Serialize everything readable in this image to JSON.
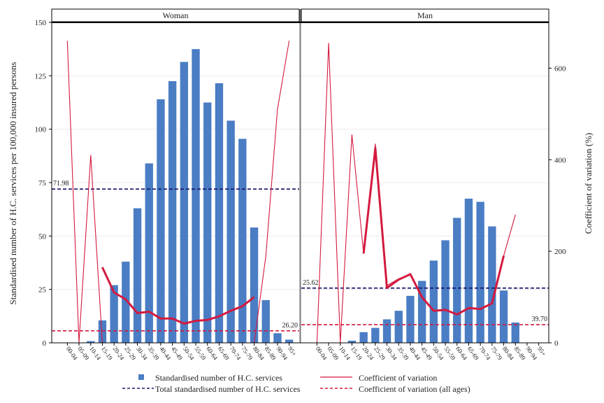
{
  "chart_data": {
    "type": "bar",
    "categories": [
      "00-04",
      "05-09",
      "10-14",
      "15-19",
      "20-24",
      "25-29",
      "30-34",
      "35-39",
      "40-44",
      "45-49",
      "50-54",
      "55-59",
      "60-64",
      "65-69",
      "70-74",
      "75-79",
      "80-84",
      "85-89",
      "90-94",
      "95+"
    ],
    "ylabel": "Standardised number of H.C. services per 100,000 insured persons",
    "y2label": "Coefficient of variation (%)",
    "ylim": [
      0,
      150
    ],
    "y2lim": [
      0,
      700
    ],
    "yticks": [
      0,
      25,
      50,
      75,
      100,
      125,
      150
    ],
    "y2ticks": [
      0,
      200,
      400,
      600
    ],
    "grid": true,
    "legend_position": "bottom",
    "panels": [
      {
        "title": "Woman",
        "values": [
          0,
          0,
          0.8,
          10.5,
          27,
          38,
          63,
          84,
          114,
          122.5,
          131.5,
          137.5,
          112.5,
          121.5,
          104,
          95.5,
          54,
          20,
          4.5,
          1.5
        ],
        "cv_all": [
          660,
          0,
          410,
          0,
          0,
          0,
          0,
          0,
          0,
          0,
          0,
          0,
          0,
          0,
          0,
          0,
          0,
          190,
          510,
          660
        ],
        "cv_bold": [
          null,
          null,
          null,
          165,
          110,
          95,
          65,
          68,
          53,
          53,
          42,
          48,
          50,
          58,
          70,
          80,
          100,
          null,
          null,
          null
        ],
        "total": 71.98,
        "total_label": "71.98",
        "cv_overall": 26.2,
        "cv_overall_label": "26.20"
      },
      {
        "title": "Man",
        "values": [
          0,
          0,
          0,
          1,
          5,
          7,
          11,
          15,
          22,
          29,
          38.5,
          48,
          58.5,
          67.5,
          66,
          54.5,
          24.5,
          9.5,
          0,
          0
        ],
        "cv_all": [
          0,
          655,
          0,
          455,
          195,
          435,
          125,
          140,
          150,
          100,
          70,
          72,
          62,
          76,
          74,
          86,
          190,
          280,
          null,
          null
        ],
        "cv_bold": [
          null,
          null,
          null,
          null,
          195,
          425,
          120,
          138,
          150,
          100,
          70,
          72,
          62,
          76,
          74,
          86,
          190,
          null,
          null,
          null
        ],
        "total": 25.62,
        "total_label": "25.62",
        "cv_overall": 39.7,
        "cv_overall_label": "39.70"
      }
    ],
    "legend": [
      {
        "label": "Standardised number of H.C. services",
        "kind": "square"
      },
      {
        "label": "Coefficient of variation",
        "kind": "line"
      },
      {
        "label": "Total standardised number of H.C. services",
        "kind": "dash-navy"
      },
      {
        "label": "Coefficient of variation (all ages)",
        "kind": "dash-red"
      }
    ],
    "colors": {
      "bar": "#4a7dc4",
      "cv": "#d4193e",
      "total": "#1a1a6e",
      "cv_all_ages": "#d4193e",
      "grid": "#ececec"
    }
  }
}
